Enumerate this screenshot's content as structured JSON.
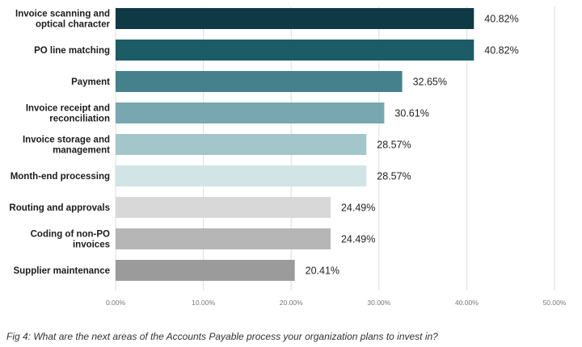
{
  "chart_data": {
    "type": "bar",
    "orientation": "horizontal",
    "categories": [
      [
        "Invoice scanning and",
        "optical character"
      ],
      [
        "PO line matching"
      ],
      [
        "Payment"
      ],
      [
        "Invoice receipt and",
        "reconciliation"
      ],
      [
        "Invoice storage and",
        "management"
      ],
      [
        "Month-end processing"
      ],
      [
        "Routing and approvals"
      ],
      [
        "Coding of non-PO",
        "invoices"
      ],
      [
        "Supplier maintenance"
      ]
    ],
    "values": [
      40.82,
      40.82,
      32.65,
      30.61,
      28.57,
      28.57,
      24.49,
      24.49,
      20.41
    ],
    "value_labels": [
      "40.82%",
      "40.82%",
      "32.65%",
      "30.61%",
      "28.57%",
      "28.57%",
      "24.49%",
      "24.49%",
      "20.41%"
    ],
    "colors": [
      "#0f3a45",
      "#1b5c66",
      "#45818c",
      "#79a7b0",
      "#a3c6cb",
      "#d1e4e6",
      "#d8d8d8",
      "#b6b6b6",
      "#9b9b9b"
    ],
    "xlim": [
      0,
      50
    ],
    "ticks": [
      0,
      10,
      20,
      30,
      40,
      50
    ],
    "tick_labels": [
      "0.00%",
      "10.00%",
      "20.00%",
      "30.00%",
      "40.00%",
      "50.00%"
    ],
    "grid": true,
    "title": "",
    "xlabel": "",
    "ylabel": ""
  },
  "caption": "Fig 4: What are the next areas of the Accounts Payable process your organization plans to invest in?"
}
